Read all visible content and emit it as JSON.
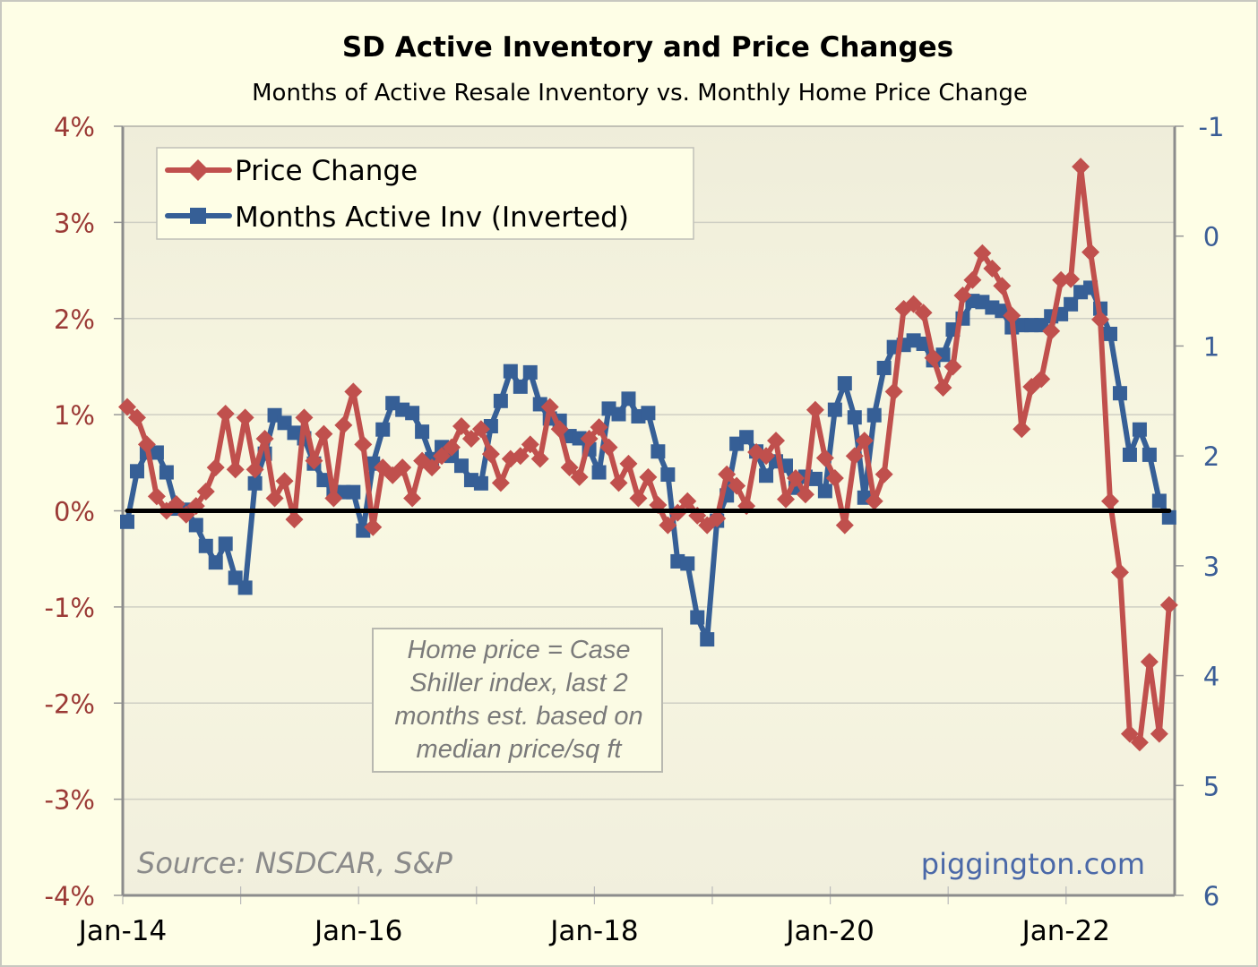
{
  "chart_data": {
    "type": "line",
    "title": "SD Active Inventory and Price Changes",
    "subtitle": "Months of Active Resale Inventory vs. Monthly Home Price Change",
    "xlabel": "",
    "ylabel_left": "",
    "ylabel_right": "",
    "x_start": "Jan-14",
    "x_end": "Nov-22",
    "x_tick_labels": [
      "Jan-14",
      "Jan-16",
      "Jan-18",
      "Jan-20",
      "Jan-22"
    ],
    "ylim_left": [
      -4,
      4
    ],
    "y_ticks_left": [
      "4%",
      "3%",
      "2%",
      "1%",
      "0%",
      "-1%",
      "-2%",
      "-3%",
      "-4%"
    ],
    "ylim_right": [
      -1,
      6
    ],
    "right_axis_inverted": true,
    "y_ticks_right": [
      "-1",
      "0",
      "1",
      "2",
      "3",
      "4",
      "5",
      "6"
    ],
    "grid": true,
    "legend_position": "top-left",
    "series": [
      {
        "name": "Price Change",
        "axis": "left",
        "unit": "%",
        "color": "#c0504d",
        "marker": "diamond",
        "values": [
          1.08,
          0.97,
          0.69,
          0.15,
          0.0,
          0.07,
          -0.04,
          0.05,
          0.2,
          0.45,
          1.01,
          0.43,
          0.97,
          0.43,
          0.75,
          0.13,
          0.31,
          -0.09,
          0.97,
          0.52,
          0.8,
          0.13,
          0.89,
          1.24,
          0.69,
          -0.17,
          0.45,
          0.37,
          0.45,
          0.13,
          0.52,
          0.45,
          0.57,
          0.66,
          0.88,
          0.75,
          0.85,
          0.59,
          0.29,
          0.54,
          0.57,
          0.69,
          0.54,
          1.08,
          0.85,
          0.45,
          0.35,
          0.75,
          0.87,
          0.66,
          0.29,
          0.49,
          0.13,
          0.35,
          0.06,
          -0.15,
          -0.02,
          0.1,
          -0.05,
          -0.15,
          -0.08,
          0.38,
          0.26,
          0.05,
          0.61,
          0.57,
          0.73,
          0.12,
          0.34,
          0.17,
          1.05,
          0.55,
          0.34,
          -0.15,
          0.57,
          0.73,
          0.1,
          0.38,
          1.24,
          2.1,
          2.15,
          2.06,
          1.59,
          1.28,
          1.5,
          2.24,
          2.4,
          2.68,
          2.52,
          2.34,
          2.03,
          0.85,
          1.29,
          1.37,
          1.87,
          2.4,
          2.41,
          3.58,
          2.69,
          1.99,
          0.1,
          -0.64,
          -2.32,
          -2.41,
          -1.57,
          -2.32,
          -0.98
        ]
      },
      {
        "name": "Months Active Inv (Inverted)",
        "axis": "right",
        "unit": "months",
        "color": "#365f96",
        "marker": "square",
        "values": [
          2.6,
          2.14,
          1.97,
          1.97,
          2.15,
          2.48,
          2.49,
          2.63,
          2.82,
          2.97,
          2.8,
          3.11,
          3.2,
          2.25,
          1.98,
          1.63,
          1.7,
          1.79,
          1.84,
          2.07,
          2.22,
          2.33,
          2.33,
          2.33,
          2.68,
          2.07,
          1.76,
          1.52,
          1.58,
          1.61,
          1.78,
          2.03,
          1.92,
          2.0,
          2.09,
          2.22,
          2.25,
          1.73,
          1.5,
          1.23,
          1.37,
          1.24,
          1.53,
          1.66,
          1.68,
          1.82,
          1.84,
          1.94,
          2.15,
          1.57,
          1.62,
          1.48,
          1.64,
          1.61,
          1.96,
          2.17,
          2.96,
          2.98,
          3.47,
          3.67,
          2.59,
          2.36,
          1.89,
          1.83,
          1.96,
          2.18,
          2.05,
          2.09,
          2.29,
          2.19,
          2.21,
          2.32,
          1.58,
          1.34,
          1.65,
          2.38,
          1.63,
          1.2,
          1.01,
          0.99,
          0.95,
          0.98,
          1.13,
          1.08,
          0.85,
          0.75,
          0.59,
          0.6,
          0.65,
          0.68,
          0.83,
          0.81,
          0.81,
          0.81,
          0.73,
          0.71,
          0.62,
          0.51,
          0.47,
          0.66,
          0.89,
          1.43,
          1.99,
          1.76,
          1.99,
          2.41,
          2.56
        ]
      }
    ],
    "reference_line": {
      "axis": "left",
      "value": 0,
      "color": "#000000"
    },
    "annotations": {
      "note_lines": [
        "Home price = Case",
        "Shiller index, last 2",
        "months est. based on",
        "median price/sq ft"
      ],
      "source": "Source: NSDCAR, S&P",
      "brand": "piggington.com"
    }
  }
}
